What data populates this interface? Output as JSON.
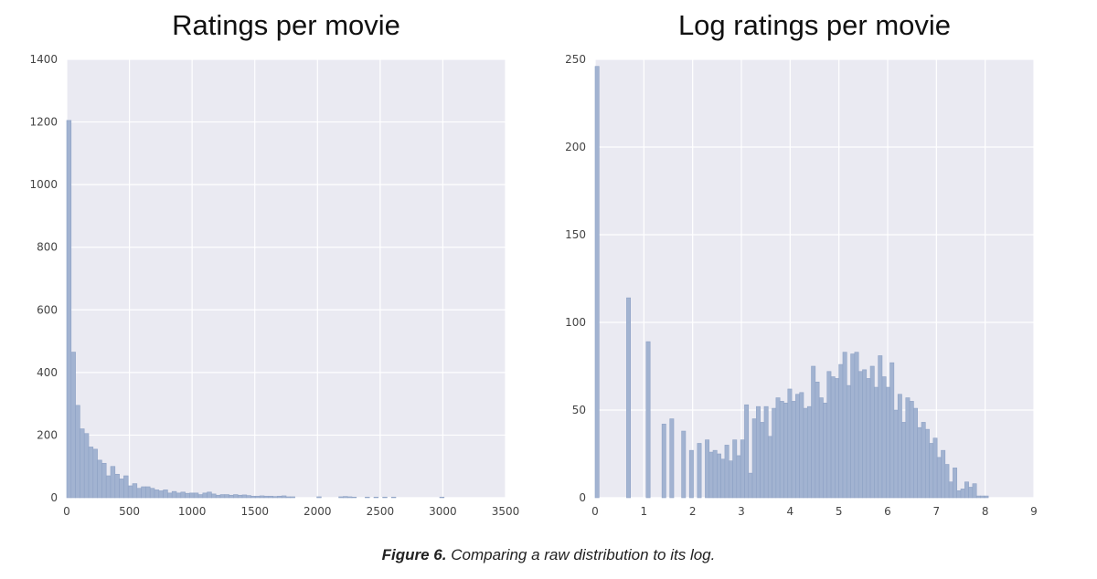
{
  "caption": {
    "label": "Figure 6.",
    "text": "Comparing a raw distribution to its log."
  },
  "colors": {
    "panel_bg": "#eaeaf2",
    "grid": "#ffffff",
    "bar_fill": "#a2b3d1",
    "bar_edge": "#8ea2c5"
  },
  "chart_data": [
    {
      "type": "bar",
      "title": "Ratings per movie",
      "xlabel": "",
      "ylabel": "",
      "xlim": [
        0,
        3500
      ],
      "ylim": [
        0,
        1400
      ],
      "xticks": [
        0,
        500,
        1000,
        1500,
        2000,
        2500,
        3000,
        3500
      ],
      "yticks": [
        0,
        200,
        400,
        600,
        800,
        1000,
        1200,
        1400
      ],
      "grid": true,
      "bin_width": 35,
      "bins_start": [
        0,
        35,
        70,
        105,
        140,
        175,
        210,
        245,
        280,
        315,
        350,
        385,
        420,
        455,
        490,
        525,
        560,
        595,
        630,
        665,
        700,
        735,
        770,
        805,
        840,
        875,
        910,
        945,
        980,
        1015,
        1050,
        1085,
        1120,
        1155,
        1190,
        1225,
        1260,
        1295,
        1330,
        1365,
        1400,
        1435,
        1470,
        1505,
        1540,
        1575,
        1610,
        1645,
        1680,
        1715,
        1750,
        1785,
        1995,
        2170,
        2205,
        2240,
        2275,
        2380,
        2450,
        2520,
        2590,
        2975
      ],
      "values": [
        1205,
        465,
        295,
        220,
        205,
        162,
        155,
        120,
        110,
        70,
        100,
        75,
        60,
        70,
        38,
        45,
        30,
        35,
        35,
        30,
        25,
        22,
        25,
        15,
        20,
        15,
        18,
        14,
        15,
        15,
        10,
        15,
        18,
        12,
        8,
        10,
        10,
        8,
        10,
        8,
        9,
        7,
        5,
        5,
        6,
        5,
        5,
        4,
        5,
        6,
        3,
        3,
        3,
        3,
        4,
        3,
        2,
        2,
        2,
        2,
        2,
        2
      ]
    },
    {
      "type": "bar",
      "title": "Log ratings per movie",
      "xlabel": "",
      "ylabel": "",
      "xlim": [
        0,
        9
      ],
      "ylim": [
        0,
        250
      ],
      "xticks": [
        0,
        1,
        2,
        3,
        4,
        5,
        6,
        7,
        8,
        9
      ],
      "yticks": [
        0,
        50,
        100,
        150,
        200,
        250
      ],
      "grid": true,
      "bin_width": 0.0806,
      "bins_start": [
        0,
        0.645,
        1.048,
        1.371,
        1.532,
        1.774,
        1.935,
        2.097,
        2.258,
        2.339,
        2.419,
        2.5,
        2.581,
        2.661,
        2.742,
        2.823,
        2.903,
        2.984,
        3.065,
        3.145,
        3.226,
        3.306,
        3.387,
        3.468,
        3.548,
        3.629,
        3.71,
        3.79,
        3.871,
        3.952,
        4.032,
        4.113,
        4.194,
        4.274,
        4.355,
        4.435,
        4.516,
        4.597,
        4.677,
        4.758,
        4.839,
        4.919,
        5.0,
        5.081,
        5.161,
        5.242,
        5.323,
        5.403,
        5.484,
        5.565,
        5.645,
        5.726,
        5.806,
        5.887,
        5.968,
        6.048,
        6.129,
        6.21,
        6.29,
        6.371,
        6.452,
        6.532,
        6.613,
        6.694,
        6.774,
        6.855,
        6.935,
        7.016,
        7.097,
        7.177,
        7.258,
        7.339,
        7.419,
        7.5,
        7.581,
        7.661,
        7.742,
        7.823,
        7.903,
        7.984
      ],
      "values": [
        246,
        114,
        89,
        42,
        45,
        38,
        27,
        31,
        33,
        26,
        27,
        25,
        22,
        30,
        21,
        33,
        24,
        33,
        53,
        14,
        45,
        52,
        43,
        52,
        35,
        51,
        57,
        55,
        54,
        62,
        55,
        59,
        60,
        51,
        52,
        75,
        66,
        57,
        54,
        72,
        69,
        68,
        76,
        83,
        64,
        82,
        83,
        72,
        73,
        68,
        75,
        63,
        81,
        69,
        63,
        77,
        50,
        59,
        43,
        57,
        55,
        51,
        40,
        43,
        39,
        31,
        34,
        23,
        27,
        19,
        9,
        17,
        4,
        5,
        9,
        6,
        8,
        1,
        1,
        1
      ]
    }
  ]
}
